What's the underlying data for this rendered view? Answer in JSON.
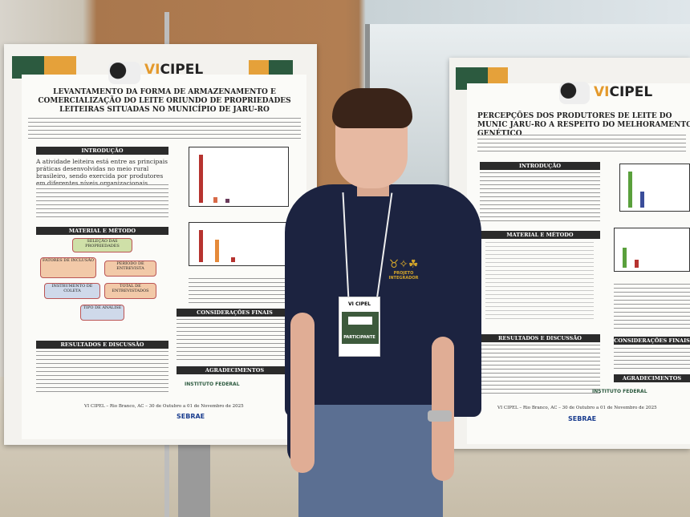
{
  "left_poster": {
    "logo": {
      "prefix": "VI",
      "suffix": "CIPEL"
    },
    "title": "LEVANTAMENTO DA FORMA DE ARMAZENAMENTO E COMERCIALIZAÇÃO DO LEITE ORIUNDO DE PROPRIEDADES LEITEIRAS SITUADAS NO MUNICÍPIO DE JARU-RO",
    "sections": [
      "INTRODUÇÃO",
      "MATERIAL E MÉTODO",
      "RESULTADOS E DISCUSSÃO",
      "CONSIDERAÇÕES FINAIS",
      "AGRADECIMENTOS"
    ],
    "intro_text": "A atividade leiteira está entre as principais práticas desenvolvidas no meio rural brasileiro, sendo exercida por produtores em diferentes níveis organizacionais.",
    "method_boxes": [
      "SELEÇÃO DAS PROPRIEDADES",
      "FATORES DE INCLUSÃO",
      "PERÍODO DE ENTREVISTA",
      "INSTRUMENTO DE COLETA",
      "TOTAL DE ENTREVISTADOS",
      "TIPO DE ANÁLISE"
    ],
    "footer": "VI CIPEL – Rio Branco, AC – 30 de Outubro a 01 de Novembro de 2025",
    "sponsors": [
      "INSTITUTO FEDERAL",
      "SEBRAE"
    ]
  },
  "right_poster": {
    "logo": {
      "prefix": "VI",
      "suffix": "CIPEL"
    },
    "title": "PERCEPÇÕES DOS PRODUTORES DE LEITE DO MUNIC JARU-RO A RESPEITO DO MELHORAMENTO GENÉTICO",
    "sections": [
      "INTRODUÇÃO",
      "MATERIAL E MÉTODO",
      "RESULTADOS E DISCUSSÃO",
      "CONSIDERAÇÕES FINAIS",
      "AGRADECIMENTOS"
    ],
    "footer": "VI CIPEL – Rio Branco, AC – 30 de Outubro a 01 de Novembro de 2025",
    "sponsors": [
      "INSTITUTO FEDERAL",
      "SEBRAE"
    ]
  },
  "person": {
    "shirt_logo": "PROJETO INTEGRADOR",
    "badge": {
      "event": "VI CIPEL",
      "role": "PARTICIPANTE"
    }
  }
}
